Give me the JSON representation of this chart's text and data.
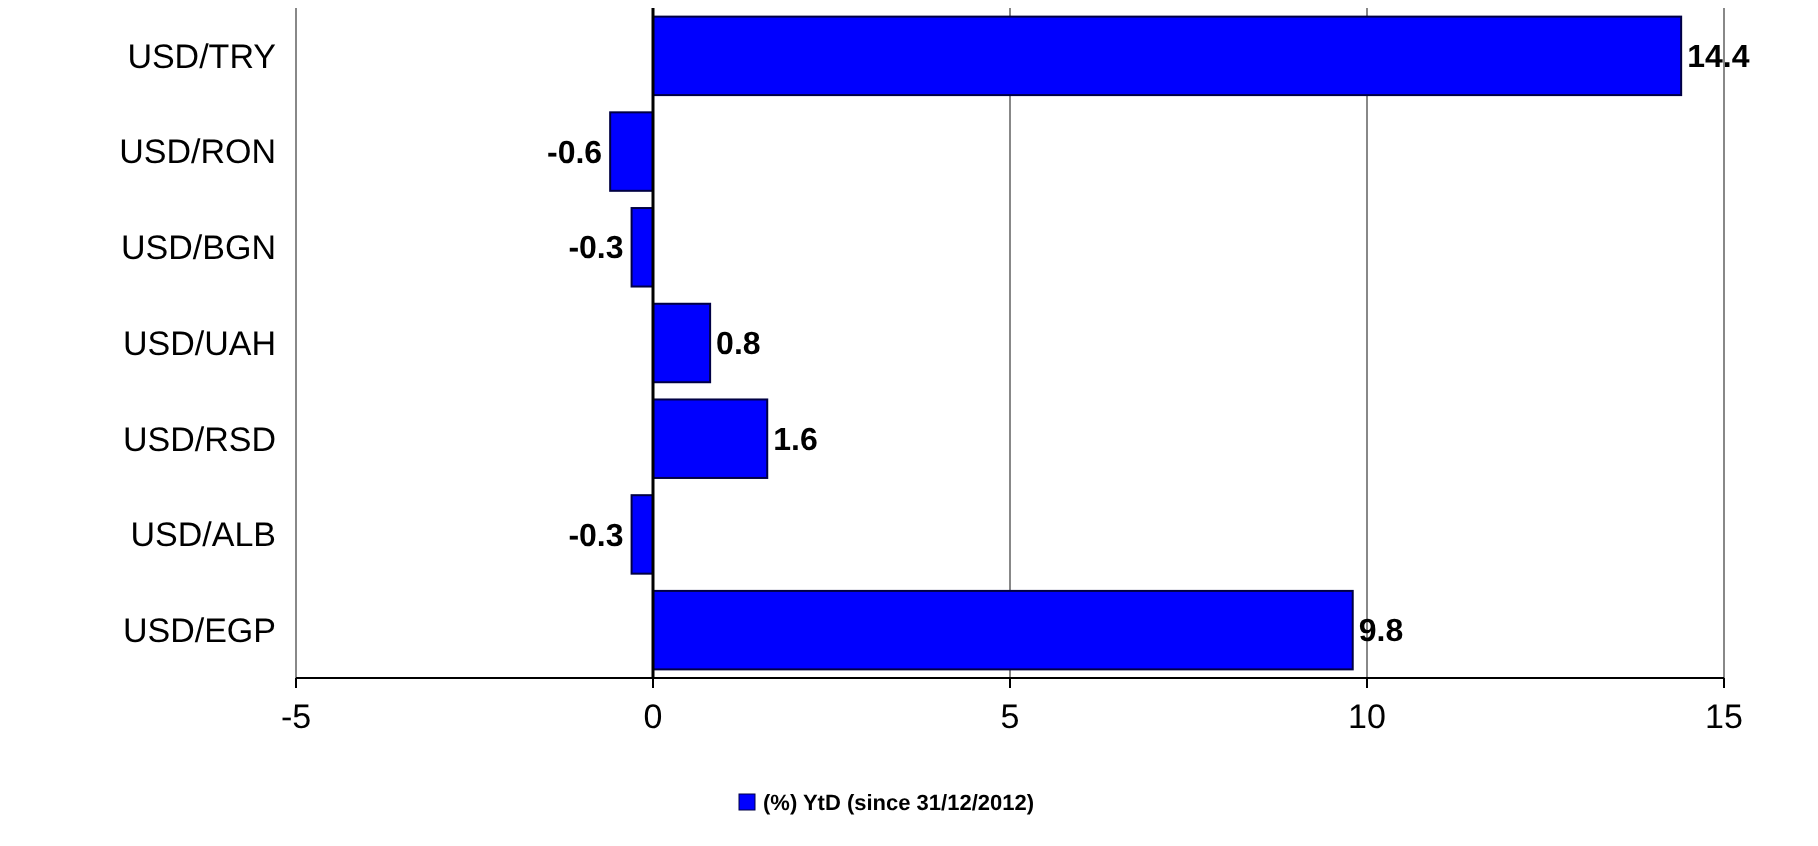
{
  "chart_data": {
    "type": "bar",
    "orientation": "horizontal",
    "categories": [
      "USD/TRY",
      "USD/RON",
      "USD/BGN",
      "USD/UAH",
      "USD/RSD",
      "USD/ALB",
      "USD/EGP"
    ],
    "series": [
      {
        "name": "(%) YtD (since 31/12/2012)",
        "color": "#0000ff",
        "values": [
          14.4,
          -0.6,
          -0.3,
          0.8,
          1.6,
          -0.3,
          9.8
        ]
      }
    ],
    "xlim": [
      -5,
      15
    ],
    "xticks": [
      -5,
      0,
      5,
      10,
      15
    ],
    "grid": "x",
    "data_labels": true,
    "legend": "bottom"
  }
}
